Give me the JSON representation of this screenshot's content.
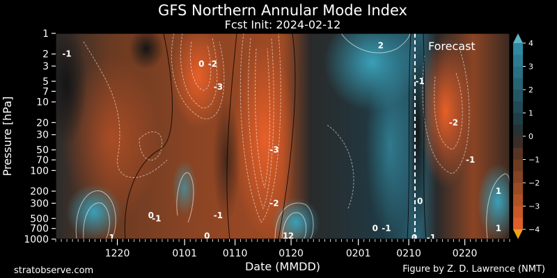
{
  "header": {
    "title": "GFS Northern Annular Mode Index",
    "subtitle": "Fcst Init: 2024-02-12"
  },
  "footer": {
    "left": "stratobserve.com",
    "right": "Figure by Z. D. Lawrence (NMT)"
  },
  "annotation": {
    "forecast_label": "Forecast"
  },
  "colors": {
    "background": "#000000",
    "positive_strong": "#2f8fa8",
    "positive_weak": "#1f3f48",
    "neutral": "#2a2a2a",
    "negative_weak": "#5a3520",
    "negative_strong": "#e8632a",
    "colorbar_over": "#5fb3c8",
    "colorbar_under": "#f0a020",
    "forecast_line": "#ffffff"
  },
  "chart_data": {
    "type": "heatmap",
    "title": "GFS Northern Annular Mode Index",
    "subtitle": "Fcst Init: 2024-02-12",
    "xlabel": "Date (MMDD)",
    "ylabel": "Pressure [hPa]",
    "x_ticks": [
      "1220",
      "0101",
      "0110",
      "0120",
      "0201",
      "0210",
      "0220"
    ],
    "y_ticks": [
      "1",
      "2",
      "3",
      "5",
      "7",
      "10",
      "20",
      "30",
      "50",
      "70",
      "100",
      "200",
      "300",
      "500",
      "700",
      "1000"
    ],
    "y_scale": "log",
    "y_range_hPa": [
      1000,
      1
    ],
    "forecast_start": "0212",
    "colorbar": {
      "ticks": [
        "4",
        "3",
        "2",
        "1",
        "0",
        "−1",
        "−2",
        "−3",
        "−4"
      ],
      "range": [
        -4,
        4
      ],
      "extend": "both"
    },
    "contour_labels": [
      {
        "value": "2",
        "date": "0205",
        "p": 1.5
      },
      {
        "value": "-1",
        "date": "0212",
        "p": 5
      },
      {
        "value": "-2",
        "date": "0218",
        "p": 20
      },
      {
        "value": "-1",
        "date": "0221",
        "p": 70
      },
      {
        "value": "0",
        "date": "0104",
        "p": 2.8
      },
      {
        "value": "-2",
        "date": "0106",
        "p": 2.8
      },
      {
        "value": "-3",
        "date": "0107",
        "p": 6
      },
      {
        "value": "-3",
        "date": "0117",
        "p": 50
      },
      {
        "value": "-2",
        "date": "0117",
        "p": 300
      },
      {
        "value": "0",
        "date": "1226",
        "p": 450
      },
      {
        "value": "-1",
        "date": "1227",
        "p": 500
      },
      {
        "value": "-1",
        "date": "0107",
        "p": 450
      },
      {
        "value": "0",
        "date": "0105",
        "p": 900
      },
      {
        "value": "1",
        "date": "1219",
        "p": 950
      },
      {
        "value": "1",
        "date": "0119",
        "p": 900
      },
      {
        "value": "2",
        "date": "0120",
        "p": 900
      },
      {
        "value": "0",
        "date": "0204",
        "p": 700
      },
      {
        "value": "-1",
        "date": "0206",
        "p": 700
      },
      {
        "value": "0",
        "date": "0212",
        "p": 280
      },
      {
        "value": "0",
        "date": "0211",
        "p": 950
      },
      {
        "value": "-1",
        "date": "0214",
        "p": 950
      },
      {
        "value": "1",
        "date": "0226",
        "p": 200
      },
      {
        "value": "1",
        "date": "0226",
        "p": 700
      },
      {
        "value": "-1",
        "date": "1211",
        "p": 2
      }
    ]
  }
}
